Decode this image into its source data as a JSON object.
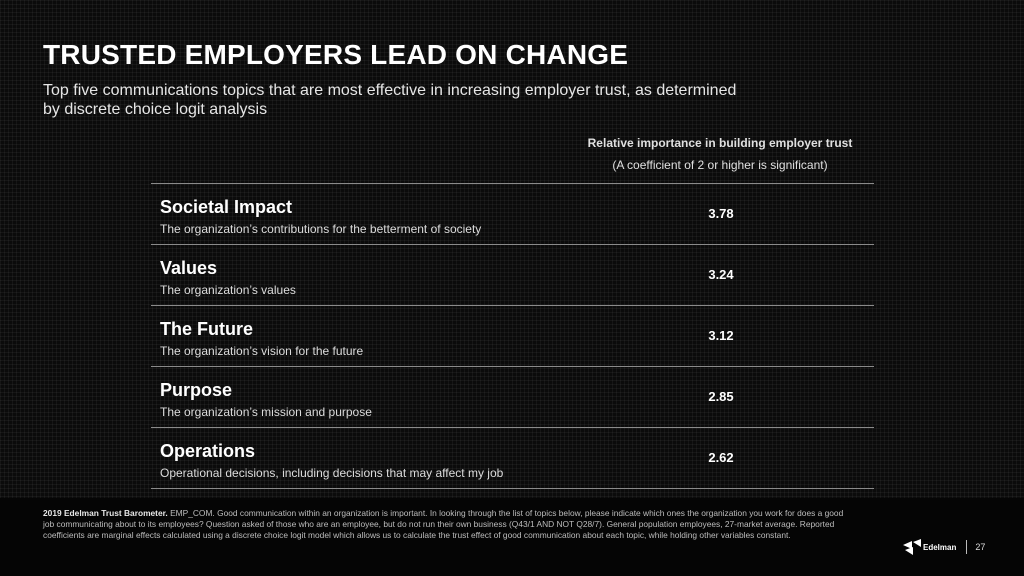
{
  "slide": {
    "title": "TRUSTED EMPLOYERS LEAD ON CHANGE",
    "subtitle": "Top five communications topics that are most effective in increasing employer trust, as determined by discrete choice logit analysis"
  },
  "column_header": {
    "line1": "Relative importance in building employer trust",
    "line2": "(A coefficient of 2 or higher is significant)"
  },
  "topics": [
    {
      "title": "Societal Impact",
      "description": "The organization’s contributions for the betterment of society",
      "value": "3.78"
    },
    {
      "title": "Values",
      "description": "The organization’s values",
      "value": "3.24"
    },
    {
      "title": "The Future",
      "description": "The organization’s vision for the future",
      "value": "3.12"
    },
    {
      "title": "Purpose",
      "description": "The organization’s mission and purpose",
      "value": "2.85"
    },
    {
      "title": "Operations",
      "description": "Operational decisions, including decisions that may affect my job",
      "value": "2.62"
    }
  ],
  "footer": {
    "source_bold": "2019 Edelman Trust Barometer.",
    "source_text": " EMP_COM. Good communication within an organization is important. In looking through the list of topics below, please indicate which ones the organization you work for does a good job communicating about to its employees? Question asked of those who are an employee, but do not run their own business (Q43/1 AND NOT Q28/7). General population employees, 27-market average. Reported coefficients are marginal effects calculated using a discrete choice logit model which allows us to calculate the trust effect of good communication about each topic, while holding other variables constant.",
    "brand": "Edelman",
    "page_number": "27",
    "logo_icon": "edelman-logo-icon"
  }
}
